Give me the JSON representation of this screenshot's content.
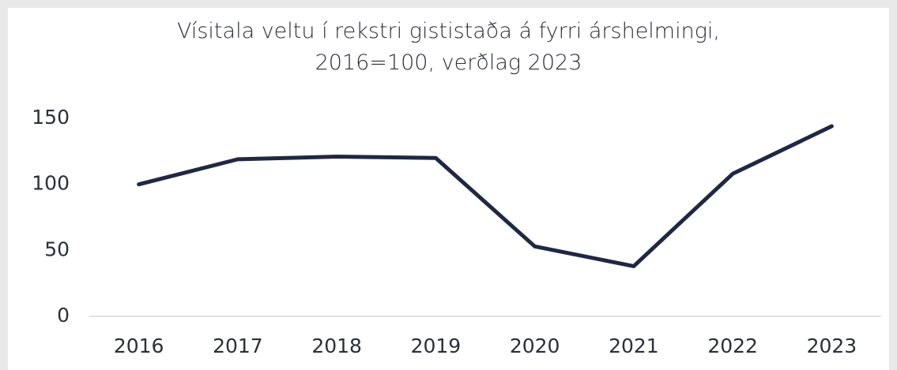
{
  "chart_data": {
    "type": "line",
    "title": "Vísitala veltu í rekstri gististaða á fyrri árshelmingi, 2016=100, verðlag 2023",
    "categories": [
      "2016",
      "2017",
      "2018",
      "2019",
      "2020",
      "2021",
      "2022",
      "2023"
    ],
    "values": [
      100,
      119,
      121,
      120,
      53,
      38,
      108,
      144
    ],
    "color": "#1f2843",
    "ylim": [
      0,
      150
    ],
    "yticks": [
      0,
      50,
      100,
      150
    ],
    "grid": false
  }
}
